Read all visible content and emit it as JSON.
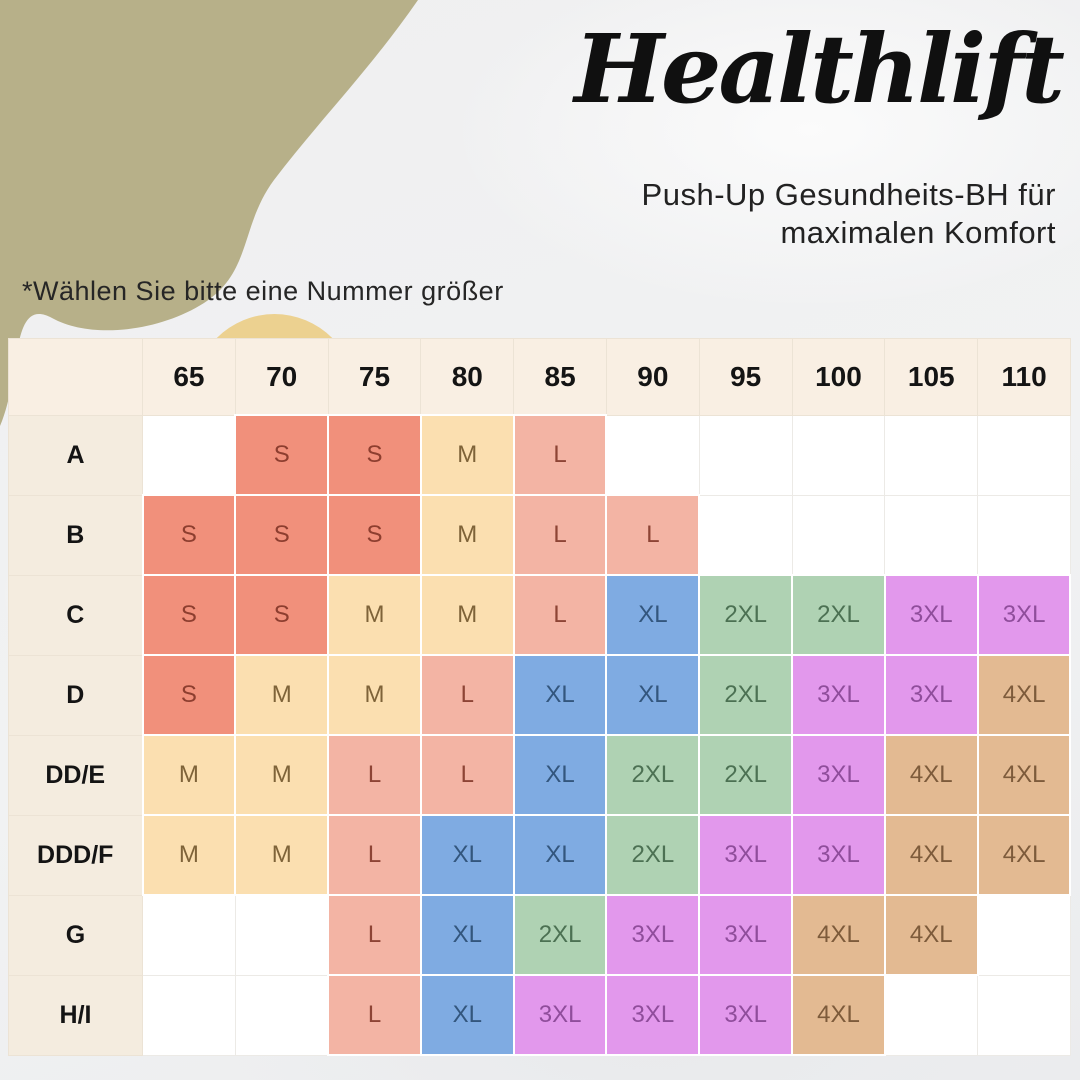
{
  "header": {
    "brand": "Healthlift",
    "subtitle_line1": "Push-Up Gesundheits-BH für",
    "subtitle_line2": "maximalen Komfort"
  },
  "note": "*Wählen Sie bitte eine Nummer größer",
  "chart_data": {
    "type": "table",
    "title": "Healthlift",
    "subtitle": "Push-Up Gesundheits-BH für maximalen Komfort",
    "note": "*Wählen Sie bitte eine Nummer größer",
    "column_headers": [
      "65",
      "70",
      "75",
      "80",
      "85",
      "90",
      "95",
      "100",
      "105",
      "110"
    ],
    "row_headers": [
      "A",
      "B",
      "C",
      "D",
      "DD/E",
      "DDD/F",
      "G",
      "H/I"
    ],
    "cells": [
      [
        "",
        "S",
        "S",
        "M",
        "L",
        "",
        "",
        "",
        "",
        ""
      ],
      [
        "S",
        "S",
        "S",
        "M",
        "L",
        "L",
        "",
        "",
        "",
        ""
      ],
      [
        "S",
        "S",
        "M",
        "M",
        "L",
        "XL",
        "2XL",
        "2XL",
        "3XL",
        "3XL"
      ],
      [
        "S",
        "M",
        "M",
        "L",
        "XL",
        "XL",
        "2XL",
        "3XL",
        "3XL",
        "4XL"
      ],
      [
        "M",
        "M",
        "L",
        "L",
        "XL",
        "2XL",
        "2XL",
        "3XL",
        "4XL",
        "4XL"
      ],
      [
        "M",
        "M",
        "L",
        "XL",
        "XL",
        "2XL",
        "3XL",
        "3XL",
        "4XL",
        "4XL"
      ],
      [
        "",
        "",
        "L",
        "XL",
        "2XL",
        "3XL",
        "3XL",
        "4XL",
        "4XL",
        ""
      ],
      [
        "",
        "",
        "L",
        "XL",
        "3XL",
        "3XL",
        "3XL",
        "4XL",
        "",
        ""
      ]
    ]
  },
  "colors": {
    "accent_blob": "#b7b089",
    "accent_circle": "#ecd190",
    "page_background": "#eef0f1",
    "header_cell_bg": "#f9efe3",
    "row_label_bg": "#f4ecdf",
    "empty_cell_bg": "#ffffff",
    "sizes": {
      "S": {
        "bg": "#f1907b",
        "text": "#8d3e2f"
      },
      "M": {
        "bg": "#fbdfb0",
        "text": "#7e6339"
      },
      "L": {
        "bg": "#f3b4a4",
        "text": "#8d4435"
      },
      "XL": {
        "bg": "#7fabe2",
        "text": "#33567d"
      },
      "2XL": {
        "bg": "#afd2b3",
        "text": "#4c7153"
      },
      "3XL": {
        "bg": "#e298ec",
        "text": "#8f4d9b"
      },
      "4XL": {
        "bg": "#e3ba92",
        "text": "#7d5b3b"
      }
    }
  }
}
